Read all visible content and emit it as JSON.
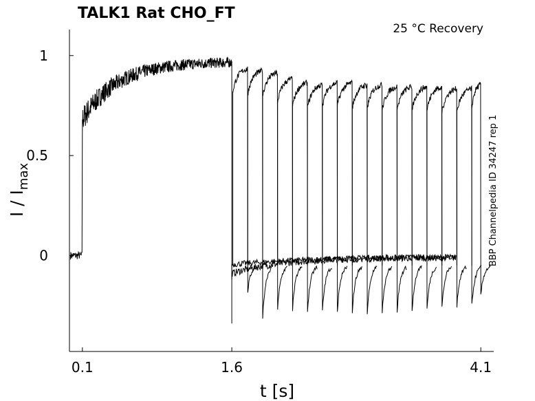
{
  "chart_data": {
    "type": "line",
    "title": "TALK1  Rat  CHO_FT",
    "condition": "25 °C  Recovery",
    "side_label": "BBP Channelpedia ID 34247 rep 1",
    "xlabel": "t [s]",
    "ylabel_main": "I / I",
    "ylabel_sub": "max",
    "xlim": [
      -0.03,
      4.23
    ],
    "ylim": [
      -0.48,
      1.13
    ],
    "x_ticks": [
      {
        "value": 0.1,
        "label": "0.1"
      },
      {
        "value": 1.6,
        "label": "1.6"
      },
      {
        "value": 4.1,
        "label": "4.1"
      }
    ],
    "y_ticks": [
      {
        "value": 0,
        "label": "0"
      },
      {
        "value": 0.5,
        "label": "0.5"
      },
      {
        "value": 1,
        "label": "1"
      }
    ],
    "protocol": {
      "baseline": 0.0,
      "step_on_time": 0.1,
      "step_off_time": 1.6,
      "initial_jump": 0.68,
      "plateau": 0.97,
      "min_after_off": -0.34,
      "end_time": 4.1
    },
    "recovery_pulses": [
      {
        "start": 1.61,
        "end": 1.76,
        "peak": 0.94,
        "dip": -0.13
      },
      {
        "start": 1.76,
        "end": 1.91,
        "peak": 0.93,
        "dip": -0.26
      },
      {
        "start": 1.91,
        "end": 2.06,
        "peak": 0.92,
        "dip": -0.22
      },
      {
        "start": 2.06,
        "end": 2.21,
        "peak": 0.89,
        "dip": -0.22
      },
      {
        "start": 2.21,
        "end": 2.36,
        "peak": 0.87,
        "dip": -0.23
      },
      {
        "start": 2.36,
        "end": 2.51,
        "peak": 0.86,
        "dip": -0.23
      },
      {
        "start": 2.51,
        "end": 2.66,
        "peak": 0.87,
        "dip": -0.23
      },
      {
        "start": 2.66,
        "end": 2.81,
        "peak": 0.87,
        "dip": -0.23
      },
      {
        "start": 2.81,
        "end": 2.96,
        "peak": 0.86,
        "dip": -0.24
      },
      {
        "start": 2.96,
        "end": 3.11,
        "peak": 0.86,
        "dip": -0.23
      },
      {
        "start": 3.11,
        "end": 3.26,
        "peak": 0.85,
        "dip": -0.23
      },
      {
        "start": 3.26,
        "end": 3.41,
        "peak": 0.85,
        "dip": -0.23
      },
      {
        "start": 3.41,
        "end": 3.56,
        "peak": 0.85,
        "dip": -0.22
      },
      {
        "start": 3.56,
        "end": 3.71,
        "peak": 0.85,
        "dip": -0.21
      },
      {
        "start": 3.71,
        "end": 3.86,
        "peak": 0.84,
        "dip": -0.2
      },
      {
        "start": 3.86,
        "end": 4.01,
        "peak": 0.84,
        "dip": -0.2
      },
      {
        "start": 4.01,
        "end": 4.1,
        "peak": 0.86,
        "dip": -0.15
      }
    ]
  }
}
